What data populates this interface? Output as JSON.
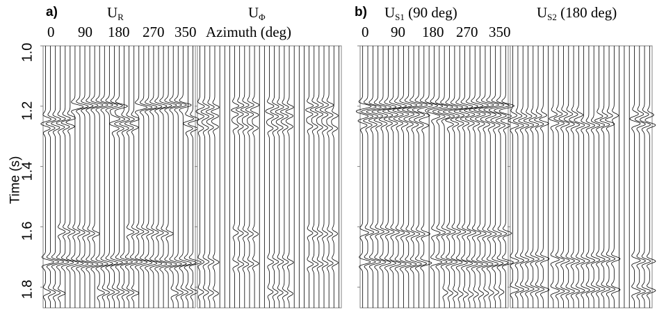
{
  "panel_a": {
    "label": "a)",
    "title_r_main": "U",
    "title_r_sub": "R",
    "title_phi_main": "U",
    "title_phi_sub": "Φ",
    "azimuth_ticks": [
      "0",
      "90",
      "180",
      "270",
      "350"
    ],
    "azimuth_label": "Azimuth (deg)"
  },
  "panel_b": {
    "label": "b)",
    "title_s1_main": "U",
    "title_s1_sub": "S1",
    "title_s1_rest": " (90 deg)",
    "title_s2_main": "U",
    "title_s2_sub": "S2",
    "title_s2_rest": " (180 deg)",
    "azimuth_ticks": [
      "0",
      "90",
      "180",
      "270",
      "350"
    ]
  },
  "y_axis": {
    "label": "Time (s)",
    "ticks": [
      "1.0",
      "1.2",
      "1.4",
      "1.6",
      "1.8"
    ]
  },
  "colors": {
    "trace": "#000000",
    "frame": "#808080",
    "background": "#ffffff"
  }
}
